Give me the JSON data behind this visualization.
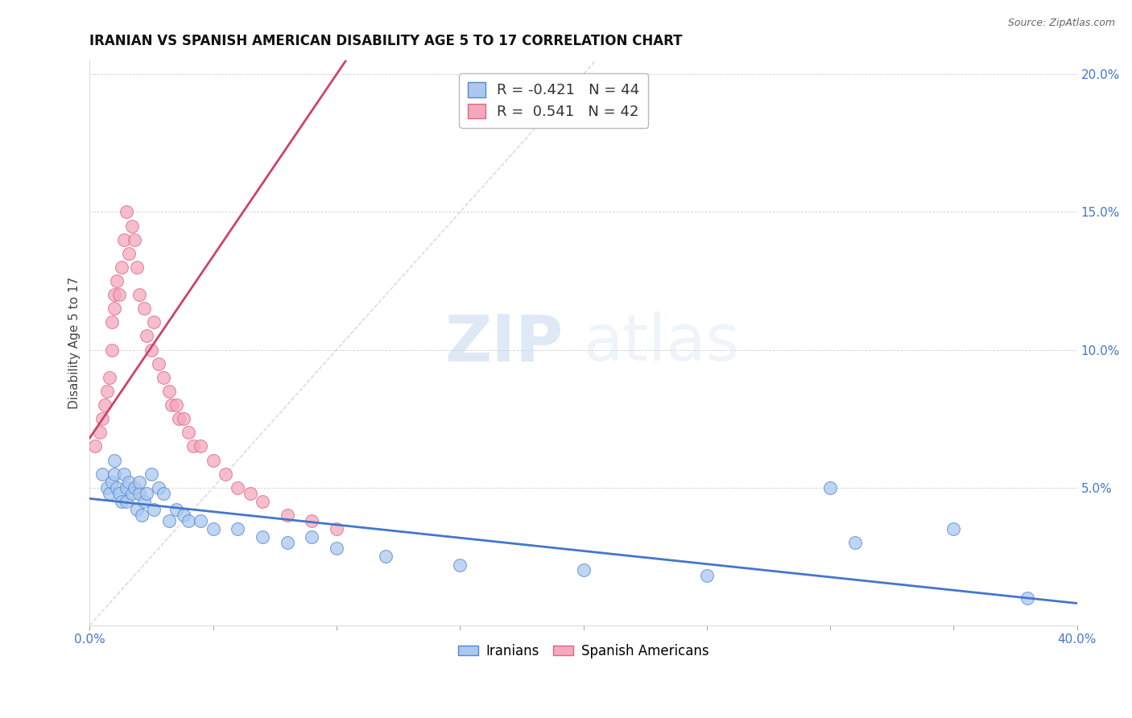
{
  "title": "IRANIAN VS SPANISH AMERICAN DISABILITY AGE 5 TO 17 CORRELATION CHART",
  "source": "Source: ZipAtlas.com",
  "ylabel": "Disability Age 5 to 17",
  "xlim": [
    0.0,
    0.4
  ],
  "ylim": [
    0.0,
    0.205
  ],
  "xticks": [
    0.0,
    0.4
  ],
  "xtick_labels": [
    "0.0%",
    "40.0%"
  ],
  "yticks": [
    0.05,
    0.1,
    0.15,
    0.2
  ],
  "ytick_labels": [
    "5.0%",
    "10.0%",
    "15.0%",
    "20.0%"
  ],
  "grid_yticks": [
    0.05,
    0.1,
    0.15,
    0.2
  ],
  "legend_line1": "R = -0.421   N = 44",
  "legend_line2": "R =  0.541   N = 42",
  "color_iranian_face": "#aac8f0",
  "color_iranian_edge": "#5588cc",
  "color_spanish_face": "#f4a8bc",
  "color_spanish_edge": "#dd6688",
  "color_line_iranian": "#4477cc",
  "color_line_spanish": "#cc4466",
  "color_diagonal": "#cccccc",
  "background_color": "#ffffff",
  "watermark_zip": "ZIP",
  "watermark_atlas": "atlas",
  "iranians_x": [
    0.005,
    0.007,
    0.008,
    0.009,
    0.01,
    0.01,
    0.011,
    0.012,
    0.013,
    0.014,
    0.015,
    0.015,
    0.016,
    0.017,
    0.018,
    0.019,
    0.02,
    0.02,
    0.021,
    0.022,
    0.023,
    0.025,
    0.026,
    0.028,
    0.03,
    0.032,
    0.035,
    0.038,
    0.04,
    0.045,
    0.05,
    0.06,
    0.07,
    0.08,
    0.09,
    0.1,
    0.12,
    0.15,
    0.2,
    0.25,
    0.3,
    0.31,
    0.35,
    0.38
  ],
  "iranians_y": [
    0.055,
    0.05,
    0.048,
    0.052,
    0.06,
    0.055,
    0.05,
    0.048,
    0.045,
    0.055,
    0.05,
    0.045,
    0.052,
    0.048,
    0.05,
    0.042,
    0.048,
    0.052,
    0.04,
    0.045,
    0.048,
    0.055,
    0.042,
    0.05,
    0.048,
    0.038,
    0.042,
    0.04,
    0.038,
    0.038,
    0.035,
    0.035,
    0.032,
    0.03,
    0.032,
    0.028,
    0.025,
    0.022,
    0.02,
    0.018,
    0.05,
    0.03,
    0.035,
    0.01
  ],
  "spanish_x": [
    0.002,
    0.004,
    0.005,
    0.006,
    0.007,
    0.008,
    0.009,
    0.009,
    0.01,
    0.01,
    0.011,
    0.012,
    0.013,
    0.014,
    0.015,
    0.016,
    0.017,
    0.018,
    0.019,
    0.02,
    0.022,
    0.023,
    0.025,
    0.026,
    0.028,
    0.03,
    0.032,
    0.033,
    0.035,
    0.036,
    0.038,
    0.04,
    0.042,
    0.045,
    0.05,
    0.055,
    0.06,
    0.065,
    0.07,
    0.08,
    0.09,
    0.1
  ],
  "spanish_y": [
    0.065,
    0.07,
    0.075,
    0.08,
    0.085,
    0.09,
    0.1,
    0.11,
    0.115,
    0.12,
    0.125,
    0.12,
    0.13,
    0.14,
    0.15,
    0.135,
    0.145,
    0.14,
    0.13,
    0.12,
    0.115,
    0.105,
    0.1,
    0.11,
    0.095,
    0.09,
    0.085,
    0.08,
    0.08,
    0.075,
    0.075,
    0.07,
    0.065,
    0.065,
    0.06,
    0.055,
    0.05,
    0.048,
    0.045,
    0.04,
    0.038,
    0.035
  ]
}
